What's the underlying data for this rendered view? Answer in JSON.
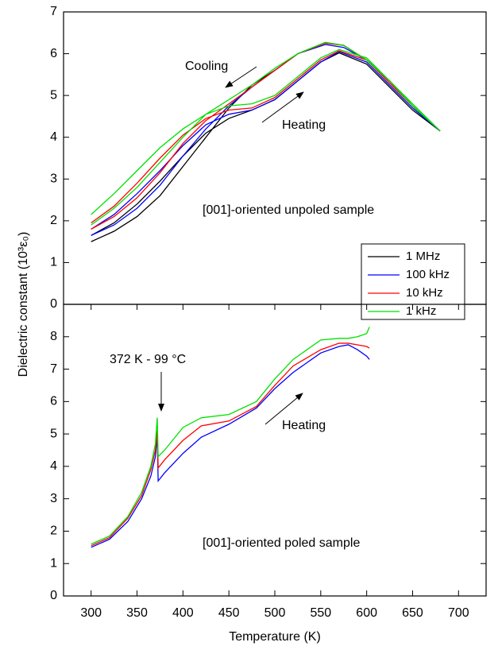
{
  "chart_data": [
    {
      "type": "line",
      "ylabel": "Dielectric constant (10³ε₀)",
      "xlim": [
        270,
        730
      ],
      "ylim": [
        0,
        7
      ],
      "yticks": [
        0,
        1,
        2,
        3,
        4,
        5,
        6,
        7
      ],
      "annotations": [
        "Cooling",
        "Heating",
        "[001]-oriented unpoled sample"
      ],
      "legend": "lower right",
      "series": [
        {
          "name": "1 MHz",
          "color": "#000000",
          "x": [
            300,
            325,
            350,
            375,
            400,
            425,
            450,
            475,
            500,
            525,
            550,
            570,
            600,
            625,
            650,
            680,
            650,
            625,
            600,
            575,
            555,
            525,
            500,
            475,
            450,
            425,
            400,
            375,
            350,
            325,
            300
          ],
          "values": [
            1.65,
            1.95,
            2.4,
            2.95,
            3.55,
            4.1,
            4.45,
            4.65,
            4.9,
            5.35,
            5.8,
            6.02,
            5.75,
            5.2,
            4.65,
            4.15,
            4.75,
            5.35,
            5.85,
            6.2,
            6.27,
            6.0,
            5.6,
            5.25,
            4.7,
            4.0,
            3.3,
            2.6,
            2.1,
            1.75,
            1.5
          ]
        },
        {
          "name": "100 kHz",
          "color": "#0000ff",
          "x": [
            300,
            325,
            350,
            375,
            400,
            425,
            450,
            475,
            500,
            525,
            550,
            570,
            600,
            625,
            650,
            680,
            650,
            625,
            600,
            575,
            555,
            525,
            500,
            475,
            450,
            425,
            400,
            375,
            350,
            325,
            300
          ],
          "values": [
            1.8,
            2.15,
            2.65,
            3.2,
            3.8,
            4.3,
            4.55,
            4.65,
            4.9,
            5.35,
            5.8,
            6.05,
            5.8,
            5.25,
            4.7,
            4.15,
            4.75,
            5.35,
            5.85,
            6.15,
            6.22,
            6.0,
            5.6,
            5.2,
            4.75,
            4.2,
            3.55,
            2.85,
            2.3,
            1.9,
            1.65
          ]
        },
        {
          "name": "10 kHz",
          "color": "#ff0000",
          "x": [
            300,
            325,
            350,
            375,
            400,
            425,
            450,
            475,
            500,
            525,
            550,
            570,
            600,
            625,
            650,
            680,
            650,
            625,
            600,
            575,
            555,
            525,
            500,
            475,
            450,
            425,
            400,
            375,
            350,
            325,
            300
          ],
          "values": [
            1.95,
            2.35,
            2.9,
            3.5,
            4.05,
            4.45,
            4.65,
            4.7,
            4.95,
            5.4,
            5.85,
            6.07,
            5.85,
            5.3,
            4.75,
            4.15,
            4.75,
            5.35,
            5.85,
            6.2,
            6.25,
            6.0,
            5.6,
            5.2,
            4.8,
            4.4,
            3.85,
            3.15,
            2.55,
            2.1,
            1.8
          ]
        },
        {
          "name": "1 kHz",
          "color": "#00e000",
          "x": [
            300,
            325,
            350,
            375,
            400,
            425,
            450,
            475,
            500,
            525,
            550,
            570,
            600,
            625,
            650,
            680,
            650,
            625,
            600,
            575,
            555,
            525,
            500,
            475,
            450,
            425,
            400,
            375,
            350,
            325,
            300
          ],
          "values": [
            2.15,
            2.65,
            3.2,
            3.75,
            4.2,
            4.55,
            4.75,
            4.8,
            5.0,
            5.45,
            5.9,
            6.1,
            5.9,
            5.35,
            4.8,
            4.15,
            4.75,
            5.35,
            5.85,
            6.2,
            6.27,
            6.0,
            5.65,
            5.25,
            4.9,
            4.55,
            4.0,
            3.4,
            2.8,
            2.3,
            1.9
          ]
        }
      ]
    },
    {
      "type": "line",
      "xlabel": "Temperature (K)",
      "xlim": [
        270,
        730
      ],
      "xticks": [
        300,
        350,
        400,
        450,
        500,
        550,
        600,
        650,
        700
      ],
      "ylim": [
        0,
        9
      ],
      "yticks": [
        0,
        1,
        2,
        3,
        4,
        5,
        6,
        7,
        8
      ],
      "annotations": [
        "372 K - 99 °C",
        "Heating",
        "[001]-oriented poled sample"
      ],
      "series": [
        {
          "color": "#0000ff",
          "x": [
            300,
            320,
            340,
            355,
            365,
            370,
            372,
            373,
            380,
            400,
            420,
            450,
            480,
            500,
            520,
            550,
            570,
            580,
            590,
            600,
            603
          ],
          "values": [
            1.5,
            1.75,
            2.3,
            3.0,
            3.7,
            4.3,
            4.95,
            3.55,
            3.8,
            4.4,
            4.9,
            5.3,
            5.8,
            6.4,
            6.9,
            7.5,
            7.7,
            7.75,
            7.6,
            7.4,
            7.3
          ]
        },
        {
          "color": "#ff0000",
          "x": [
            300,
            320,
            340,
            355,
            365,
            370,
            372,
            373,
            380,
            400,
            420,
            450,
            480,
            500,
            520,
            550,
            570,
            580,
            590,
            600,
            603
          ],
          "values": [
            1.55,
            1.8,
            2.4,
            3.1,
            3.9,
            4.5,
            5.1,
            3.95,
            4.2,
            4.8,
            5.25,
            5.4,
            5.85,
            6.5,
            7.1,
            7.6,
            7.8,
            7.8,
            7.75,
            7.7,
            7.65
          ]
        },
        {
          "color": "#00e000",
          "x": [
            300,
            320,
            340,
            355,
            365,
            370,
            372,
            373,
            380,
            400,
            420,
            450,
            480,
            500,
            520,
            550,
            570,
            580,
            590,
            600,
            603
          ],
          "values": [
            1.6,
            1.85,
            2.45,
            3.2,
            4.0,
            4.7,
            5.5,
            4.3,
            4.5,
            5.2,
            5.5,
            5.6,
            6.0,
            6.7,
            7.3,
            7.9,
            7.95,
            7.95,
            8.0,
            8.1,
            8.3
          ]
        }
      ]
    }
  ]
}
